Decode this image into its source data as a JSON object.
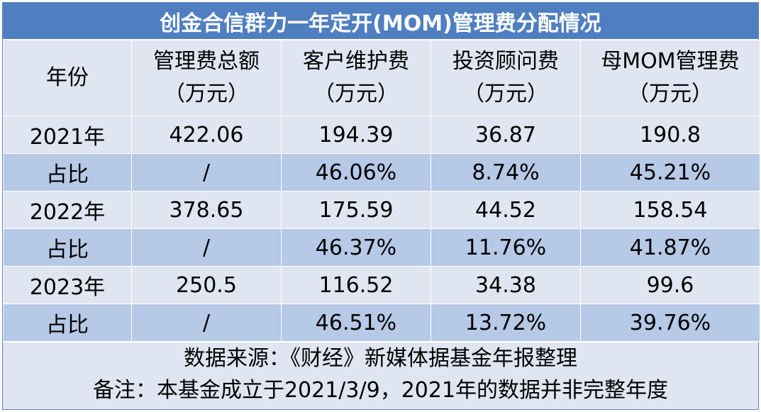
{
  "title": "创金合信群力一年定开(MOM)管理费分配情况",
  "headers": [
    {
      "line1": "年份",
      "line2": ""
    },
    {
      "line1": "管理费总额",
      "line2": "（万元）"
    },
    {
      "line1": "客户维护费",
      "line2": "（万元）"
    },
    {
      "line1": "投资顾问费",
      "line2": "（万元）"
    },
    {
      "line1": "母MOM管理费",
      "line2": "（万元）"
    }
  ],
  "rows": [
    [
      "2021年",
      "422.06",
      "194.39",
      "36.87",
      "190.8"
    ],
    [
      "占比",
      "/",
      "46.06%",
      "8.74%",
      "45.21%"
    ],
    [
      "2022年",
      "378.65",
      "175.59",
      "44.52",
      "158.54"
    ],
    [
      "占比",
      "/",
      "46.37%",
      "11.76%",
      "41.87%"
    ],
    [
      "2023年",
      "250.5",
      "116.52",
      "34.38",
      "99.6"
    ],
    [
      "占比",
      "/",
      "46.51%",
      "13.72%",
      "39.76%"
    ]
  ],
  "footer": {
    "source": "数据来源：《财经》新媒体据基金年报整理",
    "note": "备注：本基金成立于2021/3/9，2021年的数据并非完整年度"
  }
}
